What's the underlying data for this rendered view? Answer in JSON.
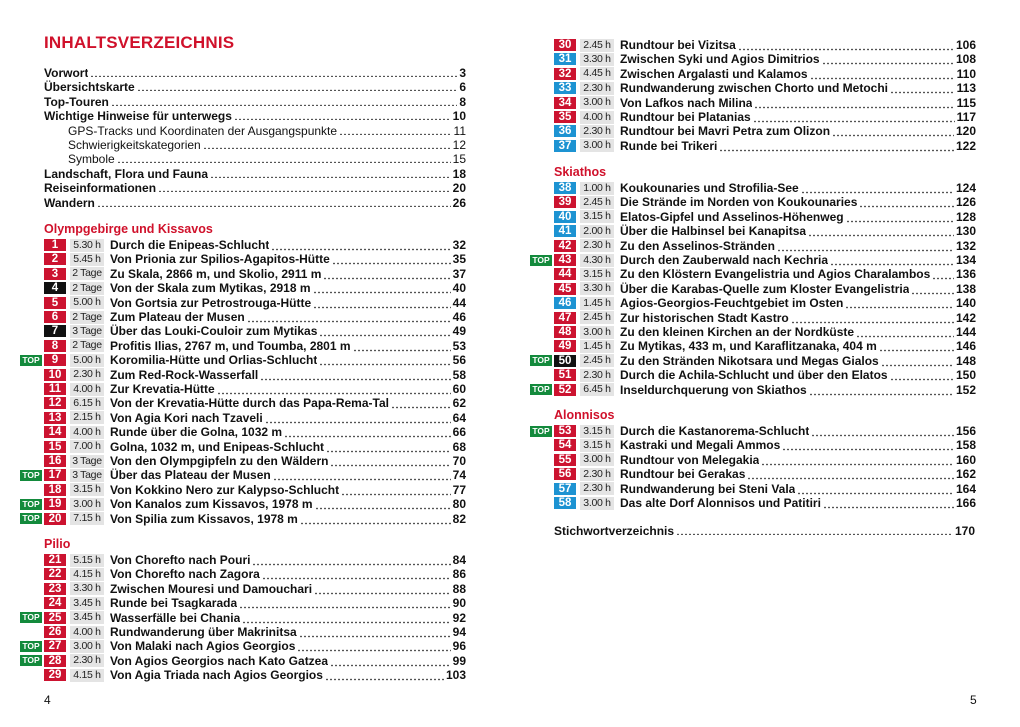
{
  "left_page": {
    "heading": "INHALTSVERZEICHNIS",
    "folio": "4",
    "front_matter": [
      {
        "title": "Vorwort",
        "page": "3",
        "level": 0
      },
      {
        "title": "Übersichtskarte",
        "page": "6",
        "level": 0
      },
      {
        "title": "Top-Touren",
        "page": "8",
        "level": 0
      },
      {
        "title": "Wichtige Hinweise für unterwegs",
        "page": "10",
        "level": 0
      },
      {
        "title": "GPS-Tracks und Koordinaten der Ausgangspunkte",
        "page": "11",
        "level": 1
      },
      {
        "title": "Schwierigkeitskategorien",
        "page": "12",
        "level": 1
      },
      {
        "title": "Symbole",
        "page": "15",
        "level": 1
      },
      {
        "title": "Landschaft, Flora und Fauna",
        "page": "18",
        "level": 0
      },
      {
        "title": "Reiseinformationen",
        "page": "20",
        "level": 0
      },
      {
        "title": "Wandern",
        "page": "26",
        "level": 0
      }
    ],
    "sections": [
      {
        "name": "Olympgebirge und Kissavos",
        "tours": [
          {
            "num": "1",
            "color": "red",
            "top": false,
            "duration": "5.30 h",
            "title": "Durch die Enipeas-Schlucht",
            "page": "32"
          },
          {
            "num": "2",
            "color": "red",
            "top": false,
            "duration": "5.45 h",
            "title": "Von Prionia zur Spilios-Agapitos-Hütte",
            "page": "35"
          },
          {
            "num": "3",
            "color": "red",
            "top": false,
            "duration": "2 Tage",
            "title": "Zu Skala, 2866 m, und Skolio, 2911 m",
            "page": "37"
          },
          {
            "num": "4",
            "color": "black",
            "top": false,
            "duration": "2 Tage",
            "title": "Von der Skala zum Mytikas, 2918 m",
            "page": "40"
          },
          {
            "num": "5",
            "color": "red",
            "top": false,
            "duration": "5.00 h",
            "title": "Von Gortsia zur Petrostrouga-Hütte",
            "page": "44"
          },
          {
            "num": "6",
            "color": "red",
            "top": false,
            "duration": "2 Tage",
            "title": "Zum Plateau der Musen",
            "page": "46"
          },
          {
            "num": "7",
            "color": "black",
            "top": false,
            "duration": "3 Tage",
            "title": "Über das Louki-Couloir zum Mytikas",
            "page": "49"
          },
          {
            "num": "8",
            "color": "red",
            "top": false,
            "duration": "2 Tage",
            "title": "Profitis Ilias, 2767 m, und Toumba, 2801 m",
            "page": "53"
          },
          {
            "num": "9",
            "color": "red",
            "top": true,
            "duration": "5.00 h",
            "title": "Koromilia-Hütte und Orlias-Schlucht",
            "page": "56"
          },
          {
            "num": "10",
            "color": "red",
            "top": false,
            "duration": "2.30 h",
            "title": "Zum Red-Rock-Wasserfall",
            "page": "58"
          },
          {
            "num": "11",
            "color": "red",
            "top": false,
            "duration": "4.00 h",
            "title": "Zur Krevatia-Hütte",
            "page": "60"
          },
          {
            "num": "12",
            "color": "red",
            "top": false,
            "duration": "6.15 h",
            "title": "Von der Krevatia-Hütte durch das Papa-Rema-Tal",
            "page": "62"
          },
          {
            "num": "13",
            "color": "red",
            "top": false,
            "duration": "2.15 h",
            "title": "Von Agia Kori nach Tzaveli",
            "page": "64"
          },
          {
            "num": "14",
            "color": "red",
            "top": false,
            "duration": "4.00 h",
            "title": "Runde über die Golna, 1032 m",
            "page": "66"
          },
          {
            "num": "15",
            "color": "red",
            "top": false,
            "duration": "7.00 h",
            "title": "Golna, 1032 m, und Enipeas-Schlucht",
            "page": "68"
          },
          {
            "num": "16",
            "color": "red",
            "top": false,
            "duration": "3 Tage",
            "title": "Von den Olympgipfeln zu den Wäldern",
            "page": "70"
          },
          {
            "num": "17",
            "color": "red",
            "top": true,
            "duration": "3 Tage",
            "title": "Über das Plateau der Musen",
            "page": "74"
          },
          {
            "num": "18",
            "color": "red",
            "top": false,
            "duration": "3.15 h",
            "title": "Von Kokkino Nero zur Kalypso-Schlucht",
            "page": "77"
          },
          {
            "num": "19",
            "color": "red",
            "top": true,
            "duration": "3.00 h",
            "title": "Von Kanalos zum Kissavos, 1978 m",
            "page": "80"
          },
          {
            "num": "20",
            "color": "red",
            "top": true,
            "duration": "7.15 h",
            "title": "Von Spilia zum Kissavos, 1978 m",
            "page": "82"
          }
        ]
      },
      {
        "name": "Pilio",
        "tours": [
          {
            "num": "21",
            "color": "red",
            "top": false,
            "duration": "5.15 h",
            "title": "Von Chorefto nach Pouri",
            "page": "84"
          },
          {
            "num": "22",
            "color": "red",
            "top": false,
            "duration": "4.15 h",
            "title": "Von Chorefto nach Zagora",
            "page": "86"
          },
          {
            "num": "23",
            "color": "red",
            "top": false,
            "duration": "3.30 h",
            "title": "Zwischen Mouresi und Damouchari",
            "page": "88"
          },
          {
            "num": "24",
            "color": "red",
            "top": false,
            "duration": "3.45 h",
            "title": "Runde bei Tsagkarada",
            "page": "90"
          },
          {
            "num": "25",
            "color": "red",
            "top": true,
            "duration": "3.45 h",
            "title": "Wasserfälle bei Chania",
            "page": "92"
          },
          {
            "num": "26",
            "color": "red",
            "top": false,
            "duration": "4.00 h",
            "title": "Rundwanderung über Makrinitsa",
            "page": "94"
          },
          {
            "num": "27",
            "color": "red",
            "top": true,
            "duration": "3.00 h",
            "title": "Von Malaki nach Agios Georgios",
            "page": "96"
          },
          {
            "num": "28",
            "color": "red",
            "top": true,
            "duration": "2.30 h",
            "title": "Von Agios Georgios nach Kato Gatzea",
            "page": "99"
          },
          {
            "num": "29",
            "color": "red",
            "top": false,
            "duration": "4.15 h",
            "title": "Von Agia Triada nach Agios Georgios",
            "page": "103"
          }
        ]
      }
    ]
  },
  "right_page": {
    "folio": "5",
    "sections": [
      {
        "name": "",
        "tours": [
          {
            "num": "30",
            "color": "red",
            "top": false,
            "duration": "2.45 h",
            "title": "Rundtour bei Vizitsa",
            "page": "106"
          },
          {
            "num": "31",
            "color": "blue",
            "top": false,
            "duration": "3.30 h",
            "title": "Zwischen Syki und Agios Dimitrios",
            "page": "108"
          },
          {
            "num": "32",
            "color": "red",
            "top": false,
            "duration": "4.45 h",
            "title": "Zwischen Argalasti und Kalamos",
            "page": "110"
          },
          {
            "num": "33",
            "color": "blue",
            "top": false,
            "duration": "2.30 h",
            "title": "Rundwanderung zwischen Chorto und Metochi",
            "page": "113"
          },
          {
            "num": "34",
            "color": "red",
            "top": false,
            "duration": "3.00 h",
            "title": "Von Lafkos nach Milina",
            "page": "115"
          },
          {
            "num": "35",
            "color": "red",
            "top": false,
            "duration": "4.00 h",
            "title": "Rundtour bei Platanias",
            "page": "117"
          },
          {
            "num": "36",
            "color": "blue",
            "top": false,
            "duration": "2.30 h",
            "title": "Rundtour bei Mavri Petra zum Olizon",
            "page": "120"
          },
          {
            "num": "37",
            "color": "blue",
            "top": false,
            "duration": "3.00 h",
            "title": "Runde bei Trikeri",
            "page": "122"
          }
        ]
      },
      {
        "name": "Skiathos",
        "tours": [
          {
            "num": "38",
            "color": "blue",
            "top": false,
            "duration": "1.00 h",
            "title": "Koukounaries und Strofilia-See",
            "page": "124"
          },
          {
            "num": "39",
            "color": "red",
            "top": false,
            "duration": "2.45 h",
            "title": "Die Strände im Norden von Koukounaries",
            "page": "126"
          },
          {
            "num": "40",
            "color": "blue",
            "top": false,
            "duration": "3.15 h",
            "title": "Elatos-Gipfel und Asselinos-Höhenweg",
            "page": "128"
          },
          {
            "num": "41",
            "color": "blue",
            "top": false,
            "duration": "2.00 h",
            "title": "Über die Halbinsel bei Kanapitsa",
            "page": "130"
          },
          {
            "num": "42",
            "color": "red",
            "top": false,
            "duration": "2.30 h",
            "title": "Zu den Asselinos-Stränden",
            "page": "132"
          },
          {
            "num": "43",
            "color": "red",
            "top": true,
            "duration": "4.30 h",
            "title": "Durch den Zauberwald nach Kechria",
            "page": "134"
          },
          {
            "num": "44",
            "color": "red",
            "top": false,
            "duration": "3.15 h",
            "title": "Zu den Klöstern Evangelistria und Agios Charalambos",
            "page": "136"
          },
          {
            "num": "45",
            "color": "red",
            "top": false,
            "duration": "3.30 h",
            "title": "Über die Karabas-Quelle zum Kloster Evangelistria",
            "page": "138"
          },
          {
            "num": "46",
            "color": "blue",
            "top": false,
            "duration": "1.45 h",
            "title": "Agios-Georgios-Feuchtgebiet im Osten",
            "page": "140"
          },
          {
            "num": "47",
            "color": "red",
            "top": false,
            "duration": "2.45 h",
            "title": "Zur historischen Stadt Kastro",
            "page": "142"
          },
          {
            "num": "48",
            "color": "red",
            "top": false,
            "duration": "3.00 h",
            "title": "Zu den kleinen Kirchen an der Nordküste",
            "page": "144"
          },
          {
            "num": "49",
            "color": "red",
            "top": false,
            "duration": "1.45 h",
            "title": "Zu Mytikas, 433 m, und Karaflitzanaka, 404 m",
            "page": "146"
          },
          {
            "num": "50",
            "color": "black",
            "top": true,
            "duration": "2.45 h",
            "title": "Zu den Stränden Nikotsara und Megas Gialos",
            "page": "148"
          },
          {
            "num": "51",
            "color": "red",
            "top": false,
            "duration": "2.30 h",
            "title": "Durch die Achila-Schlucht und über den Elatos",
            "page": "150"
          },
          {
            "num": "52",
            "color": "red",
            "top": true,
            "duration": "6.45 h",
            "title": "Inseldurchquerung von Skiathos",
            "page": "152"
          }
        ]
      },
      {
        "name": "Alonnisos",
        "tours": [
          {
            "num": "53",
            "color": "red",
            "top": true,
            "duration": "3.15 h",
            "title": "Durch die Kastanorema-Schlucht",
            "page": "156"
          },
          {
            "num": "54",
            "color": "red",
            "top": false,
            "duration": "3.15 h",
            "title": "Kastraki und Megali Ammos",
            "page": "158"
          },
          {
            "num": "55",
            "color": "red",
            "top": false,
            "duration": "3.00 h",
            "title": "Rundtour von Melegakia",
            "page": "160"
          },
          {
            "num": "56",
            "color": "red",
            "top": false,
            "duration": "2.30 h",
            "title": "Rundtour bei Gerakas",
            "page": "162"
          },
          {
            "num": "57",
            "color": "blue",
            "top": false,
            "duration": "2.30 h",
            "title": "Rundwanderung bei Steni Vala",
            "page": "164"
          },
          {
            "num": "58",
            "color": "blue",
            "top": false,
            "duration": "3.00 h",
            "title": "Das alte Dorf Alonnisos und Patitiri",
            "page": "166"
          }
        ]
      }
    ],
    "index_entry": {
      "title": "Stichwortverzeichnis",
      "page": "170"
    }
  },
  "top_badge_label": "TOP",
  "colors": {
    "accent_red": "#d0112b",
    "badge_red": "#cc1330",
    "badge_blue": "#1d93d2",
    "badge_black": "#111111",
    "top_green": "#138a3c"
  }
}
